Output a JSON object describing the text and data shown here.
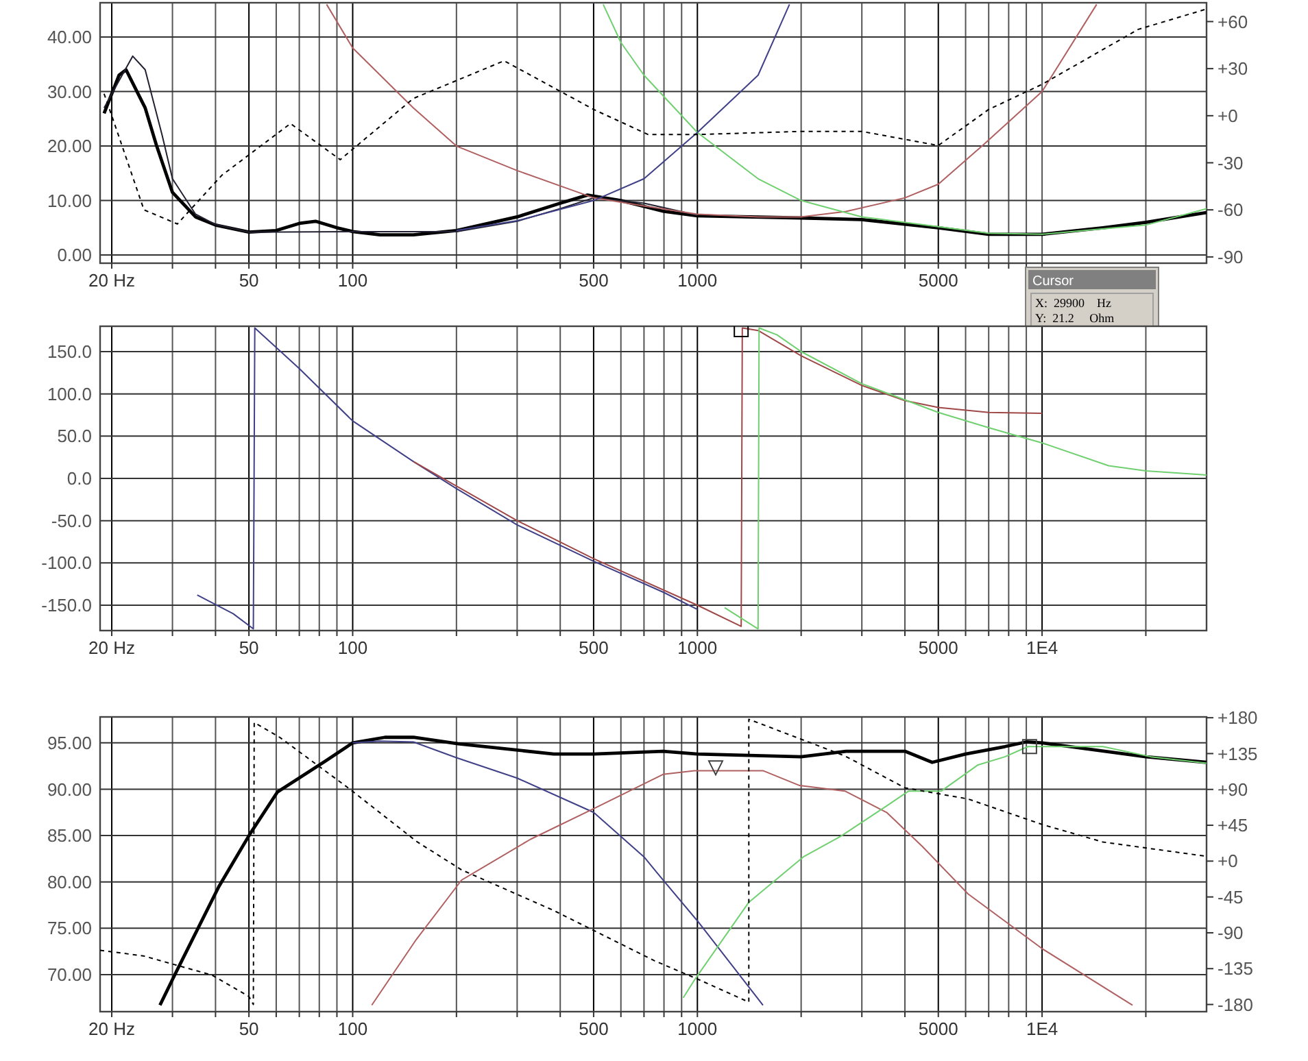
{
  "chart_data": [
    {
      "type": "line",
      "log": "x",
      "grid": true,
      "xlim": [
        18.5,
        30000
      ],
      "ylim": [
        -1.5,
        46.3
      ],
      "y2lim": [
        -94,
        72
      ],
      "xticks": [
        {
          "value": 20,
          "label": "20 Hz"
        },
        {
          "value": 30,
          "label": null
        },
        {
          "value": 40,
          "label": null
        },
        50,
        {
          "value": 60,
          "label": null
        },
        {
          "value": 70,
          "label": null
        },
        {
          "value": 80,
          "label": null
        },
        {
          "value": 90,
          "label": null
        },
        100,
        {
          "value": 200,
          "label": null
        },
        {
          "value": 300,
          "label": null
        },
        {
          "value": 400,
          "label": null
        },
        500,
        {
          "value": 600,
          "label": null
        },
        {
          "value": 700,
          "label": null
        },
        {
          "value": 800,
          "label": null
        },
        {
          "value": 900,
          "label": null
        },
        1000,
        {
          "value": 2000,
          "label": null
        },
        {
          "value": 3000,
          "label": null
        },
        {
          "value": 4000,
          "label": null
        },
        5000,
        {
          "value": 6000,
          "label": null
        },
        {
          "value": 7000,
          "label": null
        },
        {
          "value": 8000,
          "label": null
        },
        {
          "value": 9000,
          "label": null
        },
        {
          "value": 10000,
          "label": null
        },
        {
          "value": 20000,
          "label": null
        }
      ],
      "yticks": [
        {
          "value": 0,
          "label": "0.00"
        },
        {
          "value": 10,
          "label": "10.00"
        },
        {
          "value": 20,
          "label": "20.00"
        },
        {
          "value": 30,
          "label": "30.00"
        },
        {
          "value": 40,
          "label": "40.00"
        }
      ],
      "y2ticks": [
        {
          "value": 60,
          "label": "+60"
        },
        {
          "value": 30,
          "label": "+30"
        },
        {
          "value": 0,
          "label": "+0"
        },
        -30,
        -60,
        -90
      ],
      "annotations": [
        "Cursor",
        "X:  29900    Hz",
        "Y:  21.2     Ohm"
      ],
      "series": [
        {
          "color": "#000000",
          "x": [
            19,
            21,
            22,
            25,
            27,
            30,
            35,
            40,
            50,
            60,
            70,
            78,
            90,
            100,
            120,
            150,
            200,
            300,
            400,
            480,
            600,
            800,
            1000,
            2000,
            3000,
            5000,
            7000,
            10000,
            15000,
            20000,
            30000
          ],
          "values": [
            26,
            33,
            34,
            27,
            20,
            11.5,
            7,
            5.5,
            4.2,
            4.5,
            5.8,
            6.2,
            5,
            4.3,
            3.7,
            3.7,
            4.5,
            7,
            9.5,
            11,
            10,
            8,
            7.2,
            6.8,
            6.5,
            5,
            3.8,
            3.8,
            5,
            6,
            7.8
          ]
        },
        {
          "color": "#202030",
          "x": [
            19,
            21,
            23,
            25,
            28,
            30,
            35,
            40,
            50,
            100,
            200,
            300,
            400,
            500,
            700,
            1000
          ],
          "values": [
            27,
            32,
            36.5,
            34,
            22,
            14,
            7.5,
            5.6,
            4.2,
            4.3,
            4.3,
            6.2,
            8.5,
            10.5,
            9.5,
            7.3
          ]
        },
        {
          "color": "#b06060",
          "x": [
            84,
            100,
            150,
            200,
            300,
            500,
            700,
            1000,
            1500,
            2000,
            2700,
            4000,
            5000,
            6800,
            10000,
            14400
          ],
          "values": [
            46,
            38,
            27,
            20,
            15.5,
            10.5,
            9,
            7.5,
            7,
            7,
            8,
            10.5,
            13,
            20.4,
            30,
            46
          ]
        },
        {
          "color": "#70d070",
          "x": [
            533,
            600,
            700,
            1000,
            1500,
            2000,
            3000,
            5000,
            7000,
            10000,
            20000,
            30000
          ],
          "values": [
            46,
            39,
            33,
            22.5,
            14,
            10,
            7,
            5.2,
            4,
            3.8,
            5.5,
            8.5
          ]
        },
        {
          "color": "#404088",
          "x": [
            200,
            300,
            500,
            700,
            1000,
            1500,
            1850
          ],
          "values": [
            4.5,
            6.3,
            10,
            14,
            22.5,
            33,
            46
          ]
        },
        {
          "color": "#000000",
          "axis": "y2",
          "line_style": "dashed",
          "x": [
            19,
            20,
            24.8,
            31,
            41.7,
            66,
            92,
            150,
            275,
            500,
            720,
            1000,
            2000,
            3000,
            5000,
            7000,
            10000,
            19000,
            30000
          ],
          "values": [
            14,
            0,
            -60,
            -69,
            -38,
            -5,
            -28,
            11,
            35,
            4,
            -12,
            -12,
            -10,
            -10,
            -19,
            4,
            20,
            55,
            68
          ]
        }
      ]
    },
    {
      "type": "line",
      "log": "x",
      "grid": true,
      "xlim": [
        18.5,
        30000
      ],
      "ylim": [
        -180,
        180
      ],
      "xticks": [
        {
          "value": 20,
          "label": "20 Hz"
        },
        {
          "value": 30,
          "label": null
        },
        {
          "value": 40,
          "label": null
        },
        50,
        {
          "value": 60,
          "label": null
        },
        {
          "value": 70,
          "label": null
        },
        {
          "value": 80,
          "label": null
        },
        {
          "value": 90,
          "label": null
        },
        100,
        {
          "value": 200,
          "label": null
        },
        {
          "value": 300,
          "label": null
        },
        {
          "value": 400,
          "label": null
        },
        500,
        {
          "value": 600,
          "label": null
        },
        {
          "value": 700,
          "label": null
        },
        {
          "value": 800,
          "label": null
        },
        {
          "value": 900,
          "label": null
        },
        1000,
        {
          "value": 2000,
          "label": null
        },
        {
          "value": 3000,
          "label": null
        },
        {
          "value": 4000,
          "label": null
        },
        5000,
        {
          "value": 6000,
          "label": null
        },
        {
          "value": 7000,
          "label": null
        },
        {
          "value": 8000,
          "label": null
        },
        {
          "value": 9000,
          "label": null
        },
        {
          "value": 10000,
          "label": "1E4"
        },
        {
          "value": 20000,
          "label": null
        }
      ],
      "yticks": [
        {
          "value": -150,
          "label": "-150.0"
        },
        {
          "value": -100,
          "label": "-100.0"
        },
        {
          "value": -50,
          "label": "-50.0"
        },
        {
          "value": 0,
          "label": "0.0"
        },
        {
          "value": 50,
          "label": "50.0"
        },
        {
          "value": 100,
          "label": "100.0"
        },
        {
          "value": 150,
          "label": "150.0"
        }
      ],
      "series": [
        {
          "color": "#404088",
          "x": [
            35.4,
            45,
            51.5,
            52,
            70,
            100,
            150,
            200,
            300,
            500,
            800,
            1000
          ],
          "values": [
            -138,
            -160,
            -178,
            178,
            130,
            68,
            20,
            -12,
            -55,
            -98,
            -135,
            -155
          ]
        },
        {
          "color": "#a04848",
          "x": [
            150,
            300,
            500,
            1000,
            1340,
            1350,
            1500,
            2000,
            3000,
            4000,
            5000,
            7000,
            10000
          ],
          "values": [
            20,
            -50,
            -95,
            -150,
            -175,
            178,
            175,
            145,
            110,
            92,
            84,
            78,
            77
          ]
        },
        {
          "color": "#70d070",
          "x": [
            1200,
            1500,
            1510,
            1700,
            2000,
            3000,
            5000,
            7000,
            10000,
            15600,
            20000,
            30000
          ],
          "values": [
            -153,
            -178,
            178,
            170,
            150,
            112,
            78,
            60,
            42,
            15,
            9,
            4
          ]
        },
        {
          "type": "scatter",
          "marker": "square",
          "color": "#000000",
          "x": [
            1340
          ],
          "values": [
            176
          ]
        }
      ]
    },
    {
      "type": "line",
      "log": "x",
      "grid": true,
      "xlim": [
        18.5,
        30000
      ],
      "ylim": [
        66,
        97.8
      ],
      "y2lim": [
        -189,
        181
      ],
      "xticks": [
        {
          "value": 20,
          "label": "20 Hz"
        },
        {
          "value": 30,
          "label": null
        },
        {
          "value": 40,
          "label": null
        },
        50,
        {
          "value": 60,
          "label": null
        },
        {
          "value": 70,
          "label": null
        },
        {
          "value": 80,
          "label": null
        },
        {
          "value": 90,
          "label": null
        },
        100,
        {
          "value": 200,
          "label": null
        },
        {
          "value": 300,
          "label": null
        },
        {
          "value": 400,
          "label": null
        },
        500,
        {
          "value": 600,
          "label": null
        },
        {
          "value": 700,
          "label": null
        },
        {
          "value": 800,
          "label": null
        },
        {
          "value": 900,
          "label": null
        },
        1000,
        {
          "value": 2000,
          "label": null
        },
        {
          "value": 3000,
          "label": null
        },
        {
          "value": 4000,
          "label": null
        },
        5000,
        {
          "value": 6000,
          "label": null
        },
        {
          "value": 7000,
          "label": null
        },
        {
          "value": 8000,
          "label": null
        },
        {
          "value": 9000,
          "label": null
        },
        {
          "value": 10000,
          "label": "1E4"
        },
        {
          "value": 20000,
          "label": null
        }
      ],
      "yticks": [
        {
          "value": 70,
          "label": "70.00"
        },
        {
          "value": 75,
          "label": "75.00"
        },
        {
          "value": 80,
          "label": "80.00"
        },
        {
          "value": 85,
          "label": "85.00"
        },
        {
          "value": 90,
          "label": "90.00"
        },
        {
          "value": 95,
          "label": "95.00"
        }
      ],
      "y2ticks": [
        {
          "value": 180,
          "label": "+180"
        },
        {
          "value": 135,
          "label": "+135"
        },
        {
          "value": 90,
          "label": "+90"
        },
        {
          "value": 45,
          "label": "+45"
        },
        {
          "value": 0,
          "label": "+0"
        },
        -45,
        -90,
        -135,
        -180
      ],
      "series": [
        {
          "color": "#000000",
          "x": [
            27.6,
            30.4,
            40.9,
            50.4,
            60.5,
            83,
            100,
            124,
            150,
            202,
            383,
            500,
            795,
            1000,
            2000,
            2700,
            4000,
            4800,
            6000,
            7800,
            9000,
            10000,
            20000,
            30000
          ],
          "values": [
            66.7,
            69.9,
            79.5,
            85.2,
            89.7,
            93,
            95,
            95.6,
            95.6,
            94.9,
            93.8,
            93.8,
            94.1,
            93.8,
            93.5,
            94.1,
            94.1,
            92.9,
            93.8,
            94.6,
            95.1,
            95,
            93.5,
            92.9
          ]
        },
        {
          "color": "#404088",
          "x": [
            100,
            120,
            150,
            200,
            300,
            500,
            700,
            795,
            1000,
            1550
          ],
          "values": [
            95,
            95.2,
            95.1,
            93.4,
            91.2,
            87.5,
            82.7,
            80.2,
            75.8,
            66.7
          ]
        },
        {
          "color": "#b06060",
          "x": [
            113.6,
            153,
            207,
            328,
            500,
            795,
            980,
            1550,
            1980,
            2680,
            3540,
            4500,
            6100,
            10000,
            18300
          ],
          "values": [
            66.7,
            73.8,
            80.2,
            84.6,
            87.9,
            91.6,
            92,
            92,
            90.4,
            89.8,
            87.5,
            83.8,
            78.7,
            72.8,
            66.7
          ]
        },
        {
          "color": "#70d070",
          "x": [
            910,
            980,
            1410,
            2030,
            2600,
            3540,
            4100,
            5100,
            6500,
            7800,
            9100,
            15000,
            20700,
            30000
          ],
          "values": [
            67.5,
            69.4,
            77.8,
            82.7,
            84.9,
            88.2,
            89.8,
            89.8,
            92.6,
            93.5,
            94.6,
            94.6,
            93.5,
            92.8
          ]
        },
        {
          "color": "#000000",
          "axis": "y2",
          "line_style": "dashed",
          "x": [
            18.5,
            24.7,
            39,
            50,
            51.5,
            51.8,
            61.6,
            97,
            154,
            207,
            383,
            750,
            1000,
            1410,
            1410,
            2030,
            2680,
            4000,
            6100,
            10000,
            15000,
            30000
          ],
          "values": [
            -112,
            -119,
            -143,
            -170,
            -180,
            174,
            155,
            92,
            24,
            -11,
            -62,
            -125,
            -148,
            -177,
            178,
            152,
            132,
            92,
            78,
            46,
            24,
            6
          ]
        },
        {
          "type": "scatter",
          "marker": "triangle",
          "color": "#404040",
          "x": [
            1130
          ],
          "values": [
            92.3
          ]
        },
        {
          "type": "scatter",
          "marker": "square",
          "color": "#404040",
          "x": [
            9200
          ],
          "values": [
            94.6
          ]
        }
      ]
    }
  ]
}
